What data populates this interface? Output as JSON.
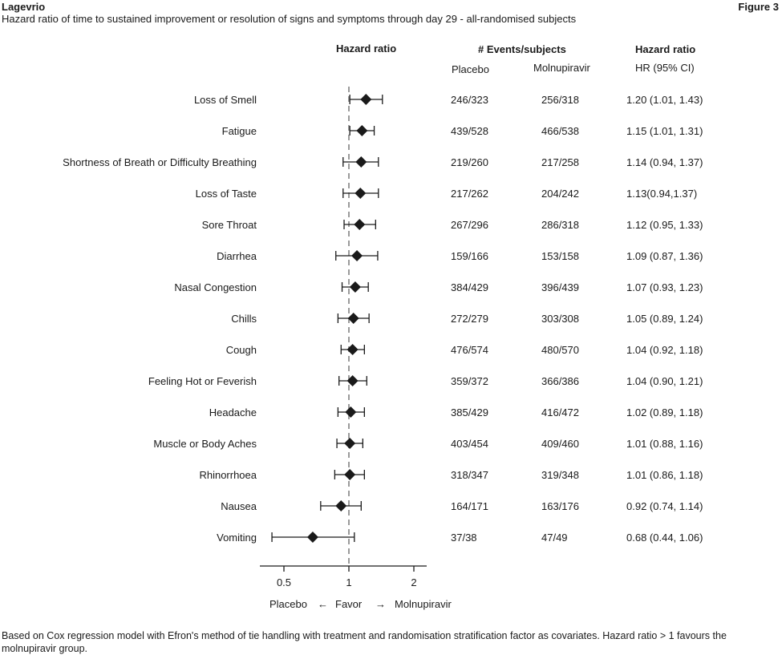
{
  "header": {
    "brand": "Lagevrio",
    "figure_label": "Figure 3",
    "subtitle": "Hazard ratio of time to sustained improvement or resolution of signs and symptoms through day 29 - all-randomised subjects"
  },
  "columns": {
    "plot_header": "Hazard ratio",
    "events_header": "# Events/subjects",
    "placebo_header": "Placebo",
    "molnupiravir_header": "Molnupiravir",
    "hr_header": "Hazard ratio",
    "hr_subheader": "HR (95% CI)"
  },
  "legend": {
    "left": "Placebo",
    "favor": "Favor",
    "right": "Molnupiravir"
  },
  "footnote": "Based on Cox regression model with Efron's method of tie handling with treatment and randomisation stratification factor as covariates. Hazard ratio > 1 favours the molnupiravir group.",
  "chart_data": {
    "type": "forest",
    "x_scale": "log",
    "x_ticks": [
      0.5,
      1,
      2
    ],
    "x_tick_labels": [
      "0.5",
      "1",
      "2"
    ],
    "xlim": [
      0.35,
      2.4
    ],
    "reference_line": 1,
    "rows": [
      {
        "label": "Loss of Smell",
        "placebo": "246/323",
        "molnupiravir": "256/318",
        "hr_text": "1.20 (1.01, 1.43)",
        "hr": 1.2,
        "lo": 1.01,
        "hi": 1.43
      },
      {
        "label": "Fatigue",
        "placebo": "439/528",
        "molnupiravir": "466/538",
        "hr_text": "1.15 (1.01, 1.31)",
        "hr": 1.15,
        "lo": 1.01,
        "hi": 1.31
      },
      {
        "label": "Shortness of Breath or Difficulty Breathing",
        "placebo": "219/260",
        "molnupiravir": "217/258",
        "hr_text": "1.14 (0.94, 1.37)",
        "hr": 1.14,
        "lo": 0.94,
        "hi": 1.37
      },
      {
        "label": "Loss of Taste",
        "placebo": "217/262",
        "molnupiravir": "204/242",
        "hr_text": "1.13(0.94,1.37)",
        "hr": 1.13,
        "lo": 0.94,
        "hi": 1.37
      },
      {
        "label": "Sore Throat",
        "placebo": "267/296",
        "molnupiravir": "286/318",
        "hr_text": "1.12 (0.95, 1.33)",
        "hr": 1.12,
        "lo": 0.95,
        "hi": 1.33
      },
      {
        "label": "Diarrhea",
        "placebo": "159/166",
        "molnupiravir": "153/158",
        "hr_text": "1.09 (0.87, 1.36)",
        "hr": 1.09,
        "lo": 0.87,
        "hi": 1.36
      },
      {
        "label": "Nasal Congestion",
        "placebo": "384/429",
        "molnupiravir": "396/439",
        "hr_text": "1.07 (0.93, 1.23)",
        "hr": 1.07,
        "lo": 0.93,
        "hi": 1.23
      },
      {
        "label": "Chills",
        "placebo": "272/279",
        "molnupiravir": "303/308",
        "hr_text": "1.05 (0.89, 1.24)",
        "hr": 1.05,
        "lo": 0.89,
        "hi": 1.24
      },
      {
        "label": "Cough",
        "placebo": "476/574",
        "molnupiravir": "480/570",
        "hr_text": "1.04 (0.92, 1.18)",
        "hr": 1.04,
        "lo": 0.92,
        "hi": 1.18
      },
      {
        "label": "Feeling Hot or Feverish",
        "placebo": "359/372",
        "molnupiravir": "366/386",
        "hr_text": "1.04 (0.90, 1.21)",
        "hr": 1.04,
        "lo": 0.9,
        "hi": 1.21
      },
      {
        "label": "Headache",
        "placebo": "385/429",
        "molnupiravir": "416/472",
        "hr_text": "1.02 (0.89, 1.18)",
        "hr": 1.02,
        "lo": 0.89,
        "hi": 1.18
      },
      {
        "label": "Muscle or Body Aches",
        "placebo": "403/454",
        "molnupiravir": "409/460",
        "hr_text": "1.01 (0.88, 1.16)",
        "hr": 1.01,
        "lo": 0.88,
        "hi": 1.16
      },
      {
        "label": "Rhinorrhoea",
        "placebo": "318/347",
        "molnupiravir": "319/348",
        "hr_text": "1.01 (0.86, 1.18)",
        "hr": 1.01,
        "lo": 0.86,
        "hi": 1.18
      },
      {
        "label": "Nausea",
        "placebo": "164/171",
        "molnupiravir": "163/176",
        "hr_text": "0.92 (0.74, 1.14)",
        "hr": 0.92,
        "lo": 0.74,
        "hi": 1.14
      },
      {
        "label": "Vomiting",
        "placebo": "37/38",
        "molnupiravir": "47/49",
        "hr_text": "0.68 (0.44, 1.06)",
        "hr": 0.68,
        "lo": 0.44,
        "hi": 1.06
      }
    ]
  }
}
